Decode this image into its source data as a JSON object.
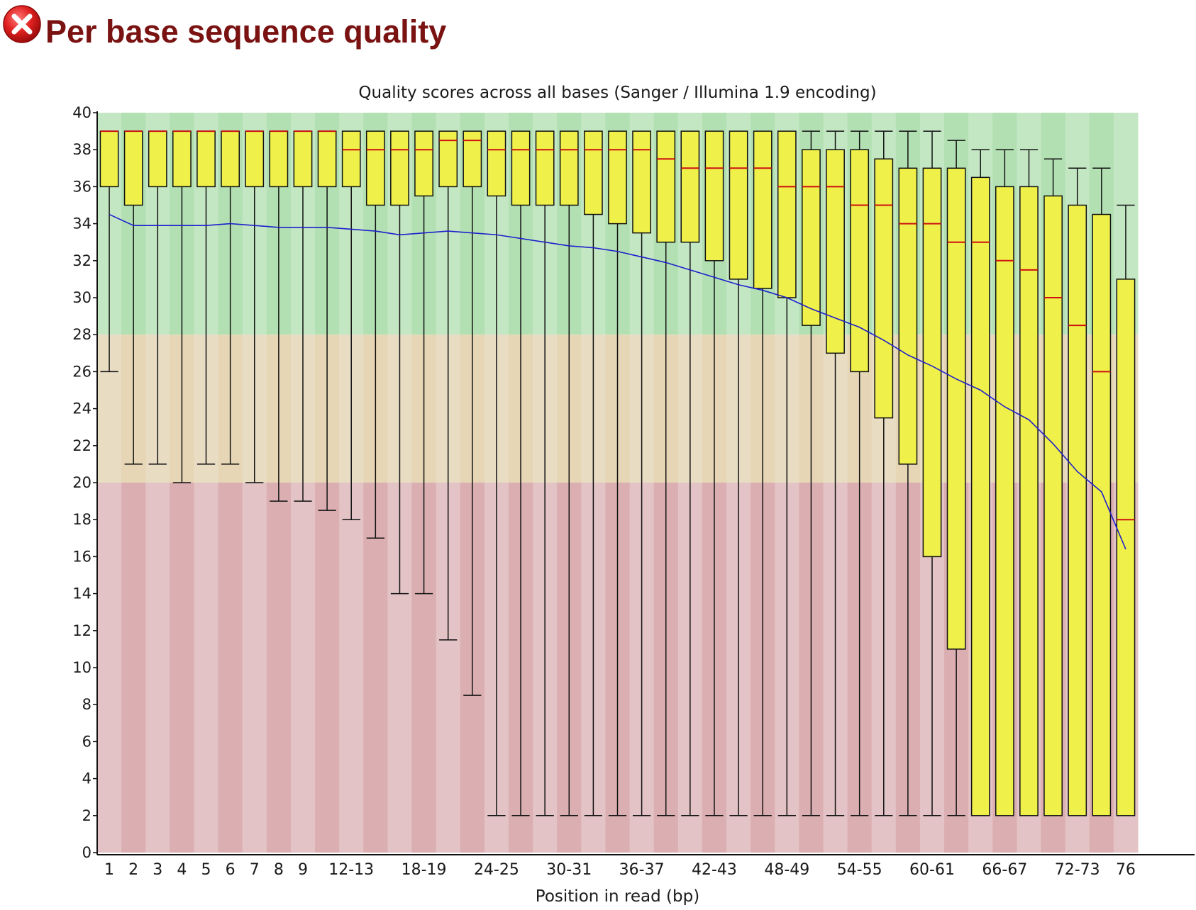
{
  "page": {
    "title": "Per base sequence quality",
    "status_icon": "error-x-icon",
    "status": "fail"
  },
  "colors": {
    "title": "#7a1212",
    "good_zone": [
      "#c3e6c3",
      "#b2e0b2"
    ],
    "warn_zone": [
      "#e8dcc3",
      "#e6d6b6"
    ],
    "fail_zone": [
      "#e3c3c5",
      "#dbaeb1"
    ],
    "box_fill": "#f0f04a",
    "median": "#cc1111",
    "mean_line": "#1f1fcc",
    "whisker": "#111111"
  },
  "chart_data": {
    "type": "boxplot",
    "title": "Quality scores across all bases (Sanger / Illumina 1.9 encoding)",
    "xlabel": "Position in read (bp)",
    "ylabel": "",
    "ylim": [
      0,
      40
    ],
    "yticks": [
      0,
      2,
      4,
      6,
      8,
      10,
      12,
      14,
      16,
      18,
      20,
      22,
      24,
      26,
      28,
      30,
      32,
      34,
      36,
      38,
      40
    ],
    "zones": [
      {
        "name": "good",
        "from": 28,
        "to": 40
      },
      {
        "name": "reasonable",
        "from": 20,
        "to": 28
      },
      {
        "name": "poor",
        "from": 0,
        "to": 20
      }
    ],
    "categories": [
      "1",
      "2",
      "3",
      "4",
      "5",
      "6",
      "7",
      "8",
      "9",
      "10-11",
      "12-13",
      "14-15",
      "16-17",
      "18-19",
      "20-21",
      "22-23",
      "24-25",
      "26-27",
      "28-29",
      "30-31",
      "32-33",
      "34-35",
      "36-37",
      "38-39",
      "40-41",
      "42-43",
      "44-45",
      "46-47",
      "48-49",
      "50-51",
      "52-53",
      "54-55",
      "56-57",
      "58-59",
      "60-61",
      "62-63",
      "64-65",
      "66-67",
      "68-69",
      "70-71",
      "72-73",
      "74-75",
      "76"
    ],
    "shown_tick_labels": [
      "1",
      "2",
      "3",
      "4",
      "5",
      "6",
      "7",
      "8",
      "9",
      "12-13",
      "18-19",
      "24-25",
      "30-31",
      "36-37",
      "42-43",
      "48-49",
      "54-55",
      "60-61",
      "66-67",
      "72-73",
      "76"
    ],
    "lower_whisker": [
      26,
      21,
      21,
      20,
      21,
      21,
      20,
      19,
      19,
      18.5,
      18,
      17,
      14,
      14,
      11.5,
      8.5,
      2,
      2,
      2,
      2,
      2,
      2,
      2,
      2,
      2,
      2,
      2,
      2,
      2,
      2,
      2,
      2,
      2,
      2,
      2,
      2,
      2,
      2,
      2,
      2,
      2,
      2,
      2
    ],
    "q1": [
      36,
      35,
      36,
      36,
      36,
      36,
      36,
      36,
      36,
      36,
      36,
      35,
      35,
      35.5,
      36,
      36,
      35.5,
      35,
      35,
      35,
      34.5,
      34,
      33.5,
      33,
      33,
      32,
      31,
      30.5,
      30,
      28.5,
      27,
      26,
      23.5,
      21,
      16,
      11,
      2,
      2,
      2,
      2,
      2,
      2,
      2
    ],
    "median": [
      39,
      39,
      39,
      39,
      39,
      39,
      39,
      39,
      39,
      39,
      38,
      38,
      38,
      38,
      38.5,
      38.5,
      38,
      38,
      38,
      38,
      38,
      38,
      38,
      37.5,
      37,
      37,
      37,
      37,
      36,
      36,
      36,
      35,
      35,
      34,
      34,
      33,
      33,
      32,
      31.5,
      30,
      28.5,
      26,
      18
    ],
    "q3": [
      39,
      39,
      39,
      39,
      39,
      39,
      39,
      39,
      39,
      39,
      39,
      39,
      39,
      39,
      39,
      39,
      39,
      39,
      39,
      39,
      39,
      39,
      39,
      39,
      39,
      39,
      39,
      39,
      39,
      38,
      38,
      38,
      37.5,
      37,
      37,
      37,
      36.5,
      36,
      36,
      35.5,
      35,
      34.5,
      31
    ],
    "upper_whisker": [
      39,
      39,
      39,
      39,
      39,
      39,
      39,
      39,
      39,
      39,
      39,
      39,
      39,
      39,
      39,
      39,
      39,
      39,
      39,
      39,
      39,
      39,
      39,
      39,
      39,
      39,
      39,
      39,
      39,
      39,
      39,
      39,
      39,
      39,
      39,
      38.5,
      38,
      38,
      38,
      37.5,
      37,
      37,
      35
    ],
    "mean": [
      34.5,
      33.9,
      33.9,
      33.9,
      33.9,
      34,
      33.9,
      33.8,
      33.8,
      33.8,
      33.7,
      33.6,
      33.4,
      33.5,
      33.6,
      33.5,
      33.4,
      33.2,
      33,
      32.8,
      32.7,
      32.5,
      32.2,
      31.9,
      31.5,
      31.1,
      30.7,
      30.4,
      30,
      29.4,
      28.9,
      28.4,
      27.7,
      26.9,
      26.3,
      25.6,
      25,
      24.1,
      23.4,
      22.1,
      20.6,
      19.5,
      16.4
    ]
  }
}
